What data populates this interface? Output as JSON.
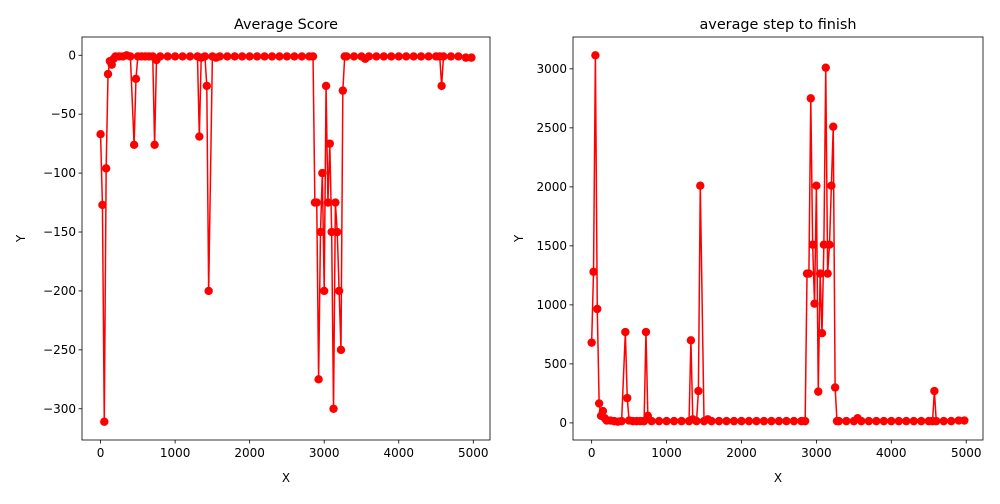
{
  "chart_data": [
    {
      "type": "line",
      "title": "Average Score",
      "x_label": "X",
      "y_label": "Y",
      "x": [
        0,
        25,
        50,
        75,
        100,
        125,
        150,
        175,
        200,
        250,
        300,
        350,
        400,
        450,
        475,
        500,
        550,
        600,
        650,
        700,
        725,
        750,
        800,
        900,
        1000,
        1100,
        1200,
        1300,
        1325,
        1350,
        1400,
        1425,
        1450,
        1500,
        1550,
        1600,
        1700,
        1800,
        1900,
        2000,
        2100,
        2200,
        2300,
        2400,
        2500,
        2600,
        2700,
        2800,
        2850,
        2875,
        2900,
        2925,
        2950,
        2975,
        3000,
        3025,
        3050,
        3075,
        3100,
        3125,
        3150,
        3175,
        3200,
        3225,
        3250,
        3275,
        3300,
        3400,
        3500,
        3550,
        3600,
        3700,
        3800,
        3900,
        4000,
        4100,
        4200,
        4300,
        4400,
        4500,
        4550,
        4575,
        4600,
        4700,
        4800,
        4900,
        4975
      ],
      "series": [
        {
          "color": "#ff0000",
          "values": [
            -67,
            -127,
            -311,
            -96,
            -16,
            -5,
            -8,
            -3,
            -1,
            -1,
            -1,
            0,
            -1,
            -76,
            -20,
            -1,
            -1,
            -1,
            -1,
            -1,
            -76,
            -4,
            -1,
            -1,
            -1,
            -1,
            -1,
            -1,
            -69,
            -2,
            -1,
            -26,
            -200,
            -1,
            -2,
            -1,
            -1,
            -1,
            -1,
            -1,
            -1,
            -1,
            -1,
            -1,
            -1,
            -1,
            -1,
            -1,
            -1,
            -125,
            -125,
            -275,
            -150,
            -100,
            -200,
            -26,
            -125,
            -75,
            -150,
            -300,
            -125,
            -150,
            -200,
            -250,
            -30,
            -1,
            -1,
            -1,
            -1,
            -3,
            -1,
            -1,
            -1,
            -1,
            -1,
            -1,
            -1,
            -1,
            -1,
            -1,
            -1,
            -26,
            -1,
            -1,
            -1,
            -2,
            -2
          ]
        }
      ],
      "xlim": [
        -249,
        5224
      ],
      "ylim": [
        -326.5,
        15.5
      ],
      "xticks": [
        0,
        1000,
        2000,
        3000,
        4000,
        5000
      ],
      "yticks": [
        {
          "value": -300,
          "label": "−300"
        },
        {
          "value": -250,
          "label": "−250"
        },
        {
          "value": -200,
          "label": "−200"
        },
        {
          "value": -150,
          "label": "−150"
        },
        {
          "value": -100,
          "label": "−100"
        },
        {
          "value": -50,
          "label": "−50"
        },
        0
      ]
    },
    {
      "type": "line",
      "title": "average step to finish",
      "x_label": "X",
      "y_label": "Y",
      "x": [
        0,
        25,
        50,
        75,
        100,
        125,
        150,
        175,
        200,
        250,
        300,
        350,
        400,
        450,
        475,
        500,
        550,
        600,
        650,
        700,
        725,
        750,
        800,
        900,
        1000,
        1100,
        1200,
        1300,
        1325,
        1350,
        1400,
        1425,
        1450,
        1500,
        1550,
        1600,
        1700,
        1800,
        1900,
        2000,
        2100,
        2200,
        2300,
        2400,
        2500,
        2600,
        2700,
        2800,
        2850,
        2875,
        2900,
        2925,
        2950,
        2975,
        3000,
        3025,
        3050,
        3075,
        3100,
        3125,
        3150,
        3175,
        3200,
        3225,
        3250,
        3275,
        3300,
        3400,
        3500,
        3550,
        3600,
        3700,
        3800,
        3900,
        4000,
        4100,
        4200,
        4300,
        4400,
        4500,
        4550,
        4575,
        4600,
        4700,
        4800,
        4900,
        4975
      ],
      "series": [
        {
          "color": "#ff0000",
          "values": [
            680,
            1280,
            3115,
            965,
            165,
            60,
            100,
            40,
            20,
            20,
            15,
            10,
            15,
            770,
            210,
            20,
            15,
            15,
            15,
            15,
            770,
            60,
            15,
            15,
            15,
            15,
            15,
            15,
            700,
            30,
            15,
            270,
            2010,
            15,
            30,
            15,
            15,
            15,
            15,
            15,
            15,
            15,
            15,
            15,
            15,
            15,
            15,
            15,
            15,
            1265,
            1265,
            2750,
            1510,
            1010,
            2010,
            265,
            1265,
            760,
            1510,
            3010,
            1265,
            1510,
            2010,
            2510,
            300,
            15,
            15,
            15,
            15,
            40,
            15,
            15,
            15,
            15,
            15,
            15,
            15,
            15,
            15,
            15,
            15,
            270,
            15,
            15,
            15,
            20,
            20
          ]
        }
      ],
      "xlim": [
        -249,
        5224
      ],
      "ylim": [
        -145,
        3270
      ],
      "xticks": [
        0,
        1000,
        2000,
        3000,
        4000,
        5000
      ],
      "yticks": [
        0,
        500,
        1000,
        1500,
        2000,
        2500,
        3000
      ]
    }
  ]
}
